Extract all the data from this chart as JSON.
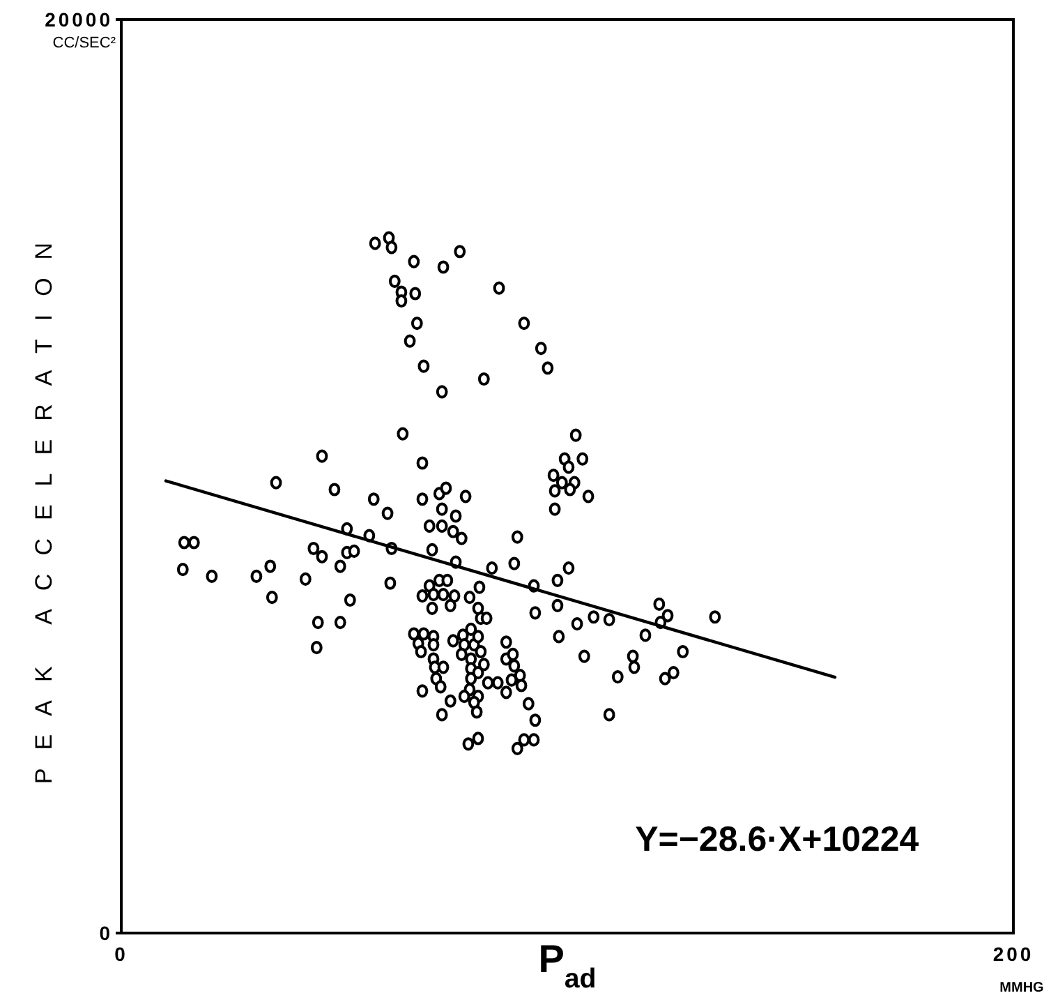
{
  "chart_data": {
    "type": "scatter",
    "xlabel": "P$_{ad}$",
    "ylabel": "PEAK ACCELERATION",
    "annotations": [
      "Y=−28.6·X+10224",
      "CC/SEC²",
      "MMHG"
    ],
    "xlim": [
      0,
      200
    ],
    "ylim": [
      0,
      20000
    ],
    "xticks": [
      0,
      200
    ],
    "yticks": [
      0,
      20000
    ],
    "marker": "circle",
    "series": [
      {
        "color": "#000000",
        "x": [
          56.9,
          60.0,
          60.6,
          65.6,
          72.2,
          75.9,
          61.3,
          62.8,
          62.8,
          65.9,
          84.7,
          66.3,
          90.3,
          64.7,
          94.1,
          95.6,
          67.8,
          81.3,
          71.9,
          63.1,
          45.0,
          67.5,
          34.7,
          47.8,
          56.6,
          59.7,
          67.5,
          71.3,
          72.8,
          77.2,
          71.9,
          69.1,
          71.9,
          75.0,
          74.4,
          76.3,
          50.6,
          55.6,
          60.6,
          69.7,
          50.6,
          52.2,
          43.1,
          45.0,
          49.1,
          14.1,
          16.3,
          13.8,
          20.3,
          30.3,
          33.4,
          33.8,
          41.3,
          60.3,
          51.3,
          44.1,
          49.1,
          43.8,
          75.0,
          83.1,
          88.8,
          88.1,
          92.5,
          97.8,
          100.3,
          92.8,
          97.8,
          98.1,
          102.2,
          105.9,
          109.4,
          103.8,
          109.4,
          69.1,
          71.3,
          73.1,
          67.5,
          70.0,
          72.2,
          74.7,
          69.7,
          73.8,
          78.1,
          80.3,
          80.0,
          80.6,
          81.9,
          65.6,
          67.8,
          70.0,
          66.6,
          67.2,
          70.0,
          70.0,
          70.3,
          72.2,
          70.6,
          71.6,
          67.5,
          74.4,
          76.6,
          78.4,
          76.9,
          79.1,
          80.0,
          76.3,
          78.4,
          80.6,
          81.3,
          78.4,
          80.0,
          78.4,
          78.1,
          76.9,
          80.0,
          79.1,
          79.7,
          73.8,
          71.9,
          82.2,
          84.4,
          86.3,
          86.3,
          87.8,
          88.1,
          89.4,
          87.5,
          89.7,
          86.3,
          91.3,
          92.8,
          77.8,
          80.0,
          88.8,
          90.3,
          92.5,
          101.9,
          99.4,
          103.4,
          100.3,
          96.9,
          98.8,
          101.6,
          97.2,
          100.6,
          104.7,
          97.2,
          120.6,
          122.5,
          120.9,
          117.5,
          133.1,
          114.7,
          115.0,
          111.3,
          125.9,
          121.9,
          123.8
        ],
        "values": [
          15100,
          15220,
          15010,
          14700,
          14580,
          14920,
          14270,
          14030,
          13840,
          14000,
          14120,
          13350,
          13350,
          12960,
          12800,
          12370,
          12410,
          12130,
          11850,
          10930,
          10440,
          10290,
          9860,
          9710,
          9500,
          9190,
          9500,
          9620,
          9740,
          9560,
          9280,
          8910,
          8910,
          9130,
          8790,
          8640,
          8850,
          8700,
          8420,
          8390,
          8330,
          8360,
          8420,
          8240,
          8030,
          8550,
          8550,
          7960,
          7810,
          7810,
          8030,
          7350,
          7750,
          7660,
          7290,
          6800,
          6800,
          6250,
          8120,
          7990,
          8670,
          8090,
          7600,
          7720,
          7990,
          7010,
          7170,
          6490,
          6770,
          6920,
          6860,
          6060,
          4780,
          7600,
          7720,
          7720,
          7380,
          7410,
          7410,
          7380,
          7110,
          7170,
          7350,
          7570,
          7110,
          6890,
          6890,
          6550,
          6550,
          6490,
          6340,
          6160,
          6310,
          6000,
          5820,
          5820,
          5570,
          5390,
          5300,
          6400,
          6520,
          6650,
          6310,
          6310,
          6490,
          6100,
          6000,
          6160,
          5880,
          5790,
          5700,
          5570,
          5330,
          5180,
          5180,
          5050,
          4840,
          5080,
          4780,
          5480,
          5480,
          6370,
          6000,
          6100,
          5850,
          5640,
          5540,
          5420,
          5270,
          5020,
          4660,
          4140,
          4260,
          4040,
          4230,
          4230,
          10900,
          10380,
          10380,
          10200,
          10020,
          9860,
          9860,
          9680,
          9710,
          9560,
          9280,
          7200,
          6950,
          6800,
          6520,
          6920,
          6060,
          5820,
          5610,
          6160,
          5570,
          5700
        ]
      },
      {
        "type": "line",
        "color": "#000000",
        "line_style": "solid",
        "marker": "none",
        "x": [
          10,
          160
        ],
        "values": [
          9900,
          5600
        ]
      }
    ]
  }
}
